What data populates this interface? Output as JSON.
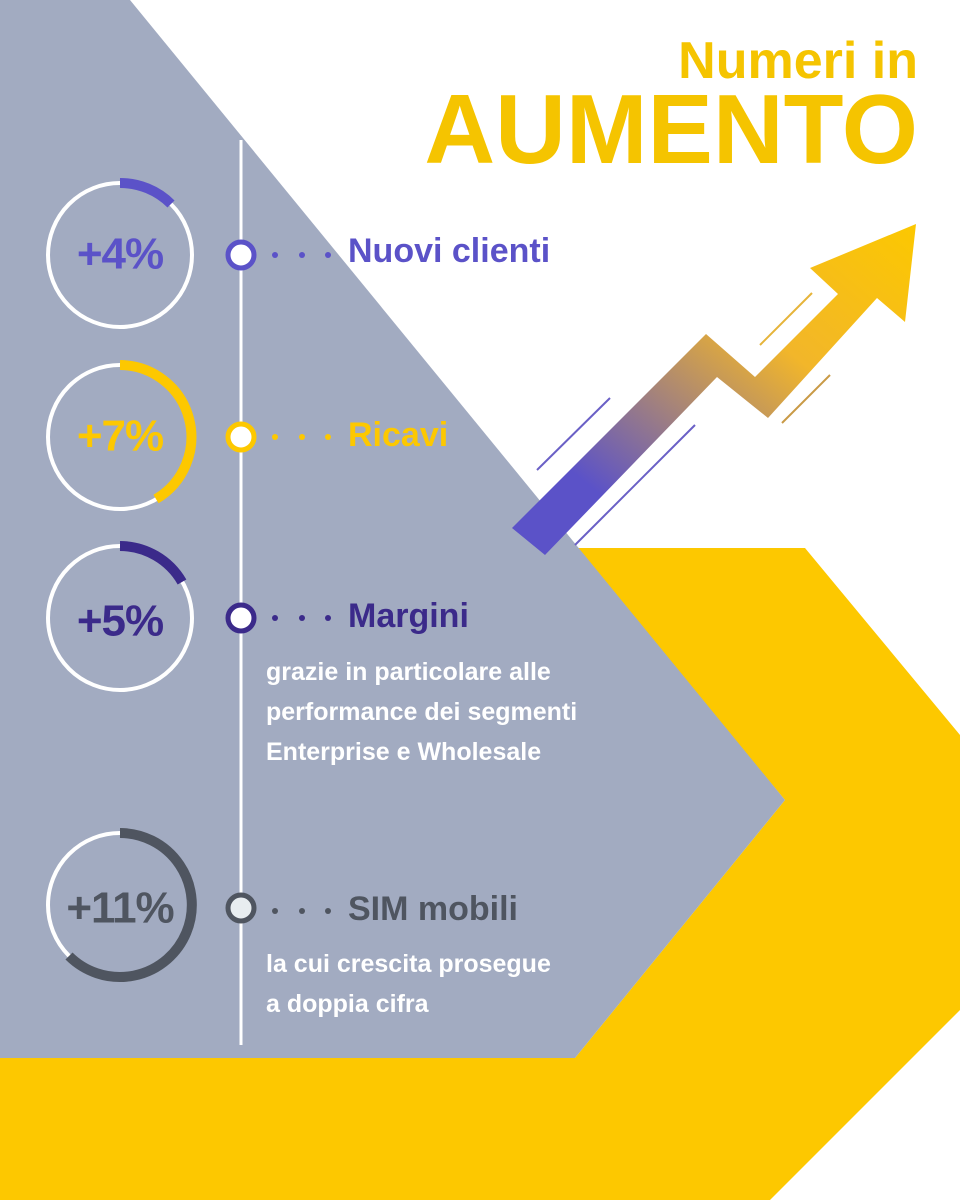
{
  "header": {
    "line1": "Numeri in",
    "line2": "AUMENTO"
  },
  "items": [
    {
      "value": "+4%",
      "label": "Nuovi clienti"
    },
    {
      "value": "+7%",
      "label": "Ricavi"
    },
    {
      "value": "+5%",
      "label": "Margini",
      "description": [
        "grazie in particolare alle",
        "performance dei segmenti",
        "Enterprise e Wholesale"
      ]
    },
    {
      "value": "+11%",
      "label": "SIM mobili",
      "description": [
        "la cui crescita prosegue",
        "a doppia cifra"
      ]
    }
  ]
}
